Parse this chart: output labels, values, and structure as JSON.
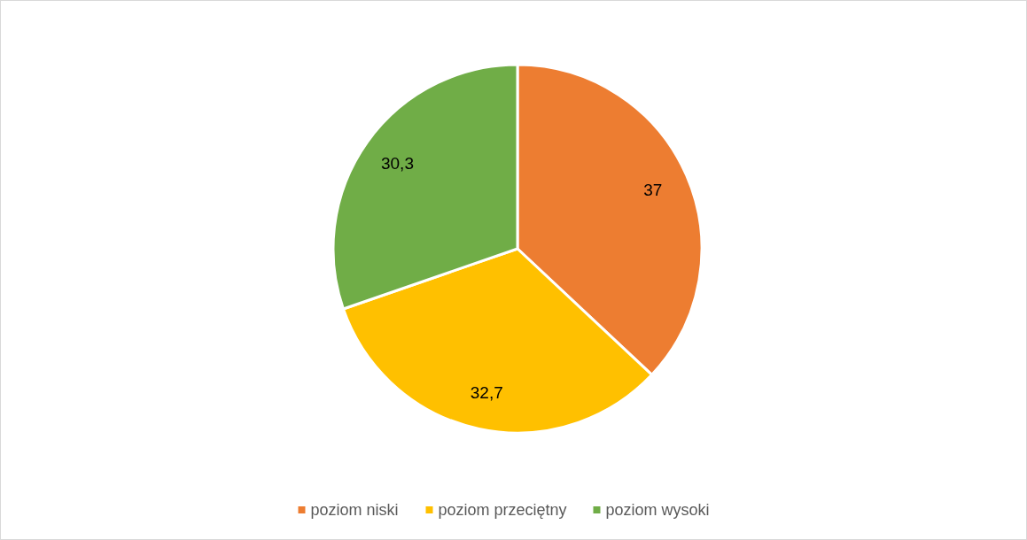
{
  "chart_data": {
    "type": "pie",
    "categories": [
      "poziom niski",
      "poziom przeciętny",
      "poziom wysoki"
    ],
    "values": [
      37,
      32.7,
      30.3
    ],
    "colors": [
      "#ed7d31",
      "#ffc000",
      "#70ad47"
    ],
    "value_labels": [
      "37",
      "32,7",
      "30,3"
    ],
    "legend": "bottom"
  }
}
